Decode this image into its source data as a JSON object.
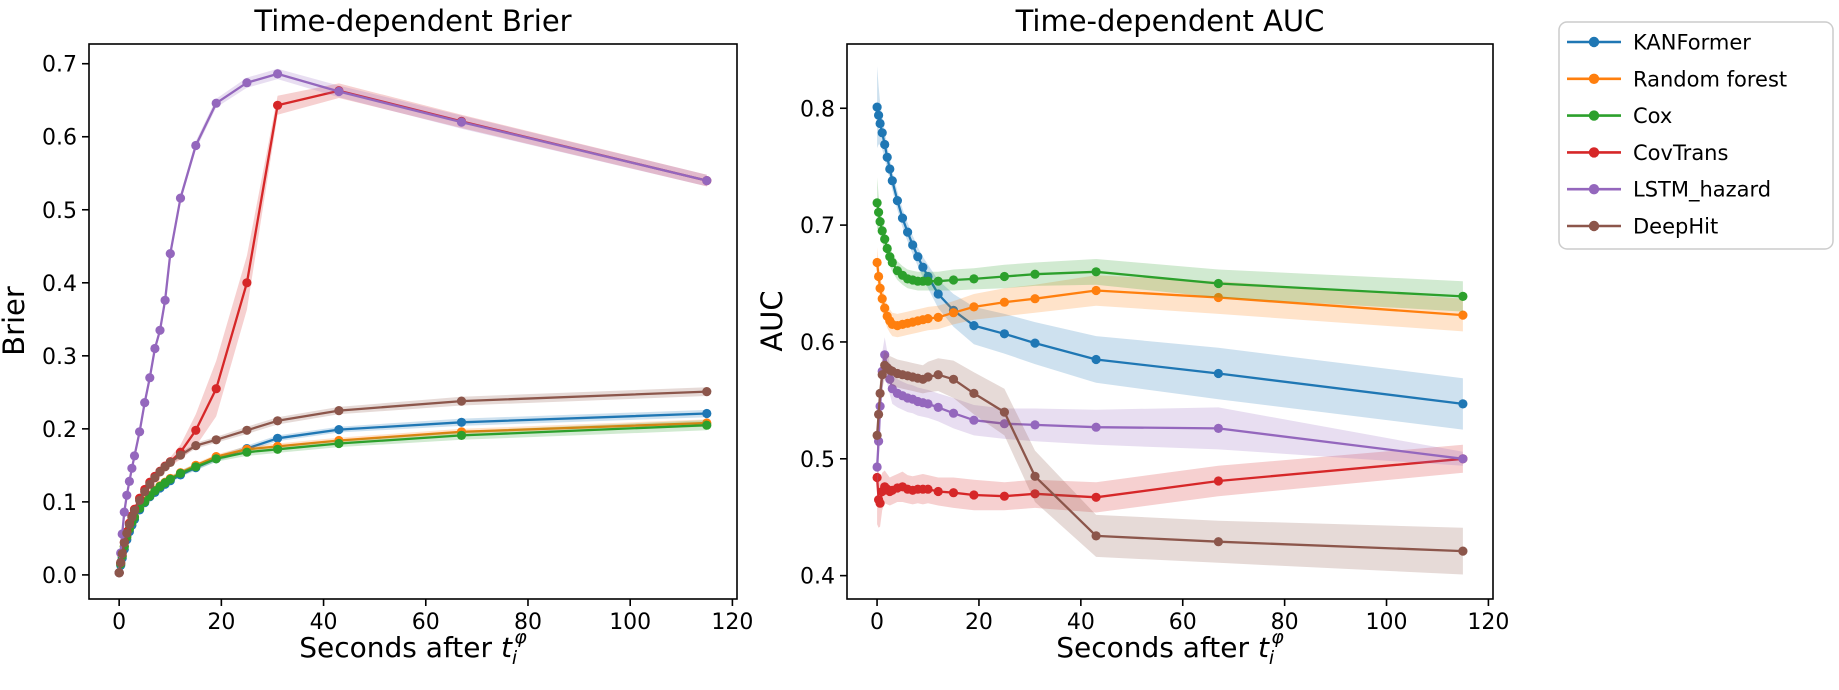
{
  "figure": {
    "background": "#ffffff",
    "spine_color": "#000000"
  },
  "colors": {
    "KANFormer": "#1f77b4",
    "Random forest": "#ff7f0e",
    "Cox": "#2ca02c",
    "CovTrans": "#d62728",
    "LSTM_hazard": "#9467bd",
    "DeepHit": "#8c564b"
  },
  "legend": {
    "items": [
      {
        "label": "KANFormer"
      },
      {
        "label": "Random forest"
      },
      {
        "label": "Cox"
      },
      {
        "label": "CovTrans"
      },
      {
        "label": "LSTM_hazard"
      },
      {
        "label": "DeepHit"
      }
    ]
  },
  "xlabel_parts": {
    "prefix": "Seconds after ",
    "var": "t",
    "sub": "i",
    "sup": "φ"
  },
  "chart_data": [
    {
      "type": "line",
      "title": "Time-dependent Brier",
      "ylabel": "Brier",
      "xlabel": "Seconds after t_i^φ",
      "legend_position": "outside-right-of-figure",
      "grid": false,
      "xlim": [
        -5.9,
        120.9
      ],
      "ylim": [
        -0.033,
        0.727
      ],
      "xticks": [
        0,
        20,
        40,
        60,
        80,
        100,
        120
      ],
      "xtick_labels": [
        "0",
        "20",
        "40",
        "60",
        "80",
        "100",
        "120"
      ],
      "yticks": [
        0.0,
        0.1,
        0.2,
        0.3,
        0.4,
        0.5,
        0.6,
        0.7
      ],
      "ytick_labels": [
        "0.0",
        "0.1",
        "0.2",
        "0.3",
        "0.4",
        "0.5",
        "0.6",
        "0.7"
      ],
      "x": [
        0,
        0.3,
        0.6,
        1,
        1.5,
        2,
        2.5,
        3,
        4,
        5,
        6,
        7,
        8,
        9,
        10,
        12,
        15,
        19,
        25,
        31,
        43,
        67,
        115
      ],
      "series": [
        {
          "name": "KANFormer",
          "values": [
            0.003,
            0.013,
            0.023,
            0.035,
            0.048,
            0.059,
            0.068,
            0.076,
            0.089,
            0.099,
            0.107,
            0.113,
            0.119,
            0.124,
            0.129,
            0.137,
            0.147,
            0.159,
            0.173,
            0.187,
            0.199,
            0.209,
            0.221
          ],
          "band": [
            0.002,
            0.002,
            0.002,
            0.002,
            0.002,
            0.003,
            0.003,
            0.003,
            0.003,
            0.003,
            0.003,
            0.003,
            0.003,
            0.003,
            0.003,
            0.003,
            0.004,
            0.004,
            0.004,
            0.004,
            0.004,
            0.005,
            0.005
          ]
        },
        {
          "name": "Random forest",
          "values": [
            0.003,
            0.015,
            0.026,
            0.039,
            0.052,
            0.063,
            0.072,
            0.08,
            0.092,
            0.101,
            0.109,
            0.116,
            0.122,
            0.127,
            0.132,
            0.14,
            0.15,
            0.162,
            0.172,
            0.176,
            0.184,
            0.196,
            0.208
          ],
          "band": [
            0.002,
            0.002,
            0.002,
            0.002,
            0.002,
            0.003,
            0.003,
            0.003,
            0.003,
            0.003,
            0.003,
            0.003,
            0.003,
            0.003,
            0.003,
            0.003,
            0.003,
            0.003,
            0.004,
            0.004,
            0.004,
            0.004,
            0.005
          ]
        },
        {
          "name": "Cox",
          "values": [
            0.003,
            0.015,
            0.026,
            0.039,
            0.052,
            0.063,
            0.072,
            0.079,
            0.091,
            0.1,
            0.108,
            0.115,
            0.121,
            0.126,
            0.131,
            0.139,
            0.148,
            0.159,
            0.168,
            0.172,
            0.18,
            0.191,
            0.205
          ],
          "band": [
            0.002,
            0.002,
            0.002,
            0.002,
            0.003,
            0.003,
            0.003,
            0.003,
            0.003,
            0.003,
            0.003,
            0.003,
            0.003,
            0.003,
            0.004,
            0.004,
            0.004,
            0.004,
            0.005,
            0.005,
            0.005,
            0.006,
            0.007
          ]
        },
        {
          "name": "CovTrans",
          "values": [
            0.003,
            0.017,
            0.03,
            0.045,
            0.059,
            0.071,
            0.081,
            0.09,
            0.105,
            0.117,
            0.127,
            0.135,
            0.142,
            0.149,
            0.155,
            0.168,
            0.198,
            0.255,
            0.4,
            0.643,
            0.663,
            0.621,
            0.54
          ],
          "band": [
            0.002,
            0.002,
            0.002,
            0.003,
            0.003,
            0.003,
            0.003,
            0.003,
            0.004,
            0.004,
            0.004,
            0.004,
            0.005,
            0.005,
            0.006,
            0.01,
            0.022,
            0.038,
            0.037,
            0.013,
            0.01,
            0.009,
            0.008
          ]
        },
        {
          "name": "LSTM_hazard",
          "values": [
            0.003,
            0.03,
            0.056,
            0.086,
            0.109,
            0.128,
            0.146,
            0.163,
            0.196,
            0.236,
            0.27,
            0.31,
            0.335,
            0.376,
            0.44,
            0.516,
            0.588,
            0.646,
            0.674,
            0.686,
            0.662,
            0.62,
            0.54
          ],
          "band": [
            0.002,
            0.003,
            0.003,
            0.003,
            0.004,
            0.004,
            0.004,
            0.004,
            0.004,
            0.005,
            0.005,
            0.005,
            0.005,
            0.005,
            0.006,
            0.006,
            0.006,
            0.006,
            0.007,
            0.007,
            0.008,
            0.009,
            0.008
          ]
        },
        {
          "name": "DeepHit",
          "values": [
            0.003,
            0.017,
            0.029,
            0.044,
            0.057,
            0.069,
            0.079,
            0.088,
            0.102,
            0.114,
            0.124,
            0.133,
            0.141,
            0.148,
            0.154,
            0.164,
            0.177,
            0.185,
            0.198,
            0.211,
            0.225,
            0.238,
            0.251
          ],
          "band": [
            0.002,
            0.002,
            0.002,
            0.002,
            0.003,
            0.003,
            0.003,
            0.003,
            0.003,
            0.003,
            0.003,
            0.003,
            0.003,
            0.003,
            0.004,
            0.004,
            0.004,
            0.004,
            0.005,
            0.005,
            0.005,
            0.006,
            0.006
          ]
        }
      ]
    },
    {
      "type": "line",
      "title": "Time-dependent AUC",
      "ylabel": "AUC",
      "xlabel": "Seconds after t_i^φ",
      "grid": false,
      "xlim": [
        -5.9,
        120.9
      ],
      "ylim": [
        0.38,
        0.855
      ],
      "xticks": [
        0,
        20,
        40,
        60,
        80,
        100,
        120
      ],
      "xtick_labels": [
        "0",
        "20",
        "40",
        "60",
        "80",
        "100",
        "120"
      ],
      "yticks": [
        0.4,
        0.5,
        0.6,
        0.7,
        0.8
      ],
      "ytick_labels": [
        "0.4",
        "0.5",
        "0.6",
        "0.7",
        "0.8"
      ],
      "x": [
        0,
        0.3,
        0.6,
        1,
        1.5,
        2,
        2.5,
        3,
        4,
        5,
        6,
        7,
        8,
        9,
        10,
        12,
        15,
        19,
        25,
        31,
        43,
        67,
        115
      ],
      "series": [
        {
          "name": "KANFormer",
          "values": [
            0.801,
            0.794,
            0.787,
            0.779,
            0.769,
            0.758,
            0.748,
            0.738,
            0.721,
            0.706,
            0.694,
            0.683,
            0.673,
            0.664,
            0.656,
            0.641,
            0.627,
            0.614,
            0.607,
            0.599,
            0.585,
            0.573,
            0.547
          ],
          "band": [
            0.035,
            0.025,
            0.018,
            0.014,
            0.012,
            0.01,
            0.009,
            0.008,
            0.008,
            0.008,
            0.008,
            0.008,
            0.008,
            0.009,
            0.01,
            0.012,
            0.014,
            0.016,
            0.017,
            0.018,
            0.02,
            0.022,
            0.022
          ]
        },
        {
          "name": "Random forest",
          "values": [
            0.668,
            0.656,
            0.646,
            0.637,
            0.629,
            0.622,
            0.618,
            0.615,
            0.614,
            0.615,
            0.616,
            0.617,
            0.618,
            0.619,
            0.62,
            0.621,
            0.625,
            0.63,
            0.634,
            0.637,
            0.644,
            0.638,
            0.623
          ],
          "band": [
            0.013,
            0.012,
            0.011,
            0.011,
            0.01,
            0.01,
            0.01,
            0.01,
            0.01,
            0.01,
            0.01,
            0.01,
            0.01,
            0.01,
            0.01,
            0.01,
            0.01,
            0.011,
            0.012,
            0.012,
            0.013,
            0.014,
            0.014
          ]
        },
        {
          "name": "Cox",
          "values": [
            0.719,
            0.711,
            0.703,
            0.695,
            0.688,
            0.68,
            0.673,
            0.668,
            0.661,
            0.657,
            0.654,
            0.653,
            0.652,
            0.652,
            0.652,
            0.652,
            0.653,
            0.654,
            0.656,
            0.658,
            0.66,
            0.65,
            0.639
          ],
          "band": [
            0.022,
            0.015,
            0.012,
            0.01,
            0.009,
            0.008,
            0.008,
            0.008,
            0.008,
            0.008,
            0.008,
            0.008,
            0.008,
            0.008,
            0.008,
            0.008,
            0.009,
            0.009,
            0.01,
            0.01,
            0.011,
            0.012,
            0.013
          ]
        },
        {
          "name": "CovTrans",
          "values": [
            0.484,
            0.465,
            0.462,
            0.472,
            0.476,
            0.474,
            0.472,
            0.473,
            0.475,
            0.476,
            0.474,
            0.473,
            0.474,
            0.474,
            0.474,
            0.472,
            0.471,
            0.469,
            0.468,
            0.47,
            0.467,
            0.481,
            0.5
          ],
          "band": [
            0.04,
            0.024,
            0.02,
            0.016,
            0.014,
            0.013,
            0.012,
            0.012,
            0.012,
            0.013,
            0.012,
            0.012,
            0.012,
            0.013,
            0.012,
            0.012,
            0.013,
            0.013,
            0.012,
            0.012,
            0.013,
            0.013,
            0.012
          ]
        },
        {
          "name": "LSTM_hazard",
          "values": [
            0.493,
            0.515,
            0.545,
            0.575,
            0.589,
            0.578,
            0.568,
            0.56,
            0.556,
            0.554,
            0.552,
            0.551,
            0.549,
            0.548,
            0.547,
            0.544,
            0.539,
            0.533,
            0.53,
            0.529,
            0.527,
            0.526,
            0.5
          ],
          "band": [
            0.03,
            0.022,
            0.018,
            0.016,
            0.015,
            0.014,
            0.013,
            0.013,
            0.012,
            0.012,
            0.012,
            0.012,
            0.012,
            0.012,
            0.012,
            0.012,
            0.013,
            0.013,
            0.013,
            0.014,
            0.015,
            0.018,
            0.006
          ]
        },
        {
          "name": "DeepHit",
          "values": [
            0.52,
            0.538,
            0.556,
            0.572,
            0.58,
            0.578,
            0.576,
            0.575,
            0.573,
            0.572,
            0.571,
            0.57,
            0.569,
            0.568,
            0.57,
            0.572,
            0.568,
            0.556,
            0.54,
            0.485,
            0.434,
            0.429,
            0.421
          ],
          "band": [
            0.015,
            0.013,
            0.012,
            0.012,
            0.012,
            0.012,
            0.012,
            0.012,
            0.012,
            0.012,
            0.012,
            0.012,
            0.012,
            0.012,
            0.013,
            0.014,
            0.016,
            0.018,
            0.02,
            0.022,
            0.018,
            0.018,
            0.02
          ]
        }
      ]
    }
  ]
}
